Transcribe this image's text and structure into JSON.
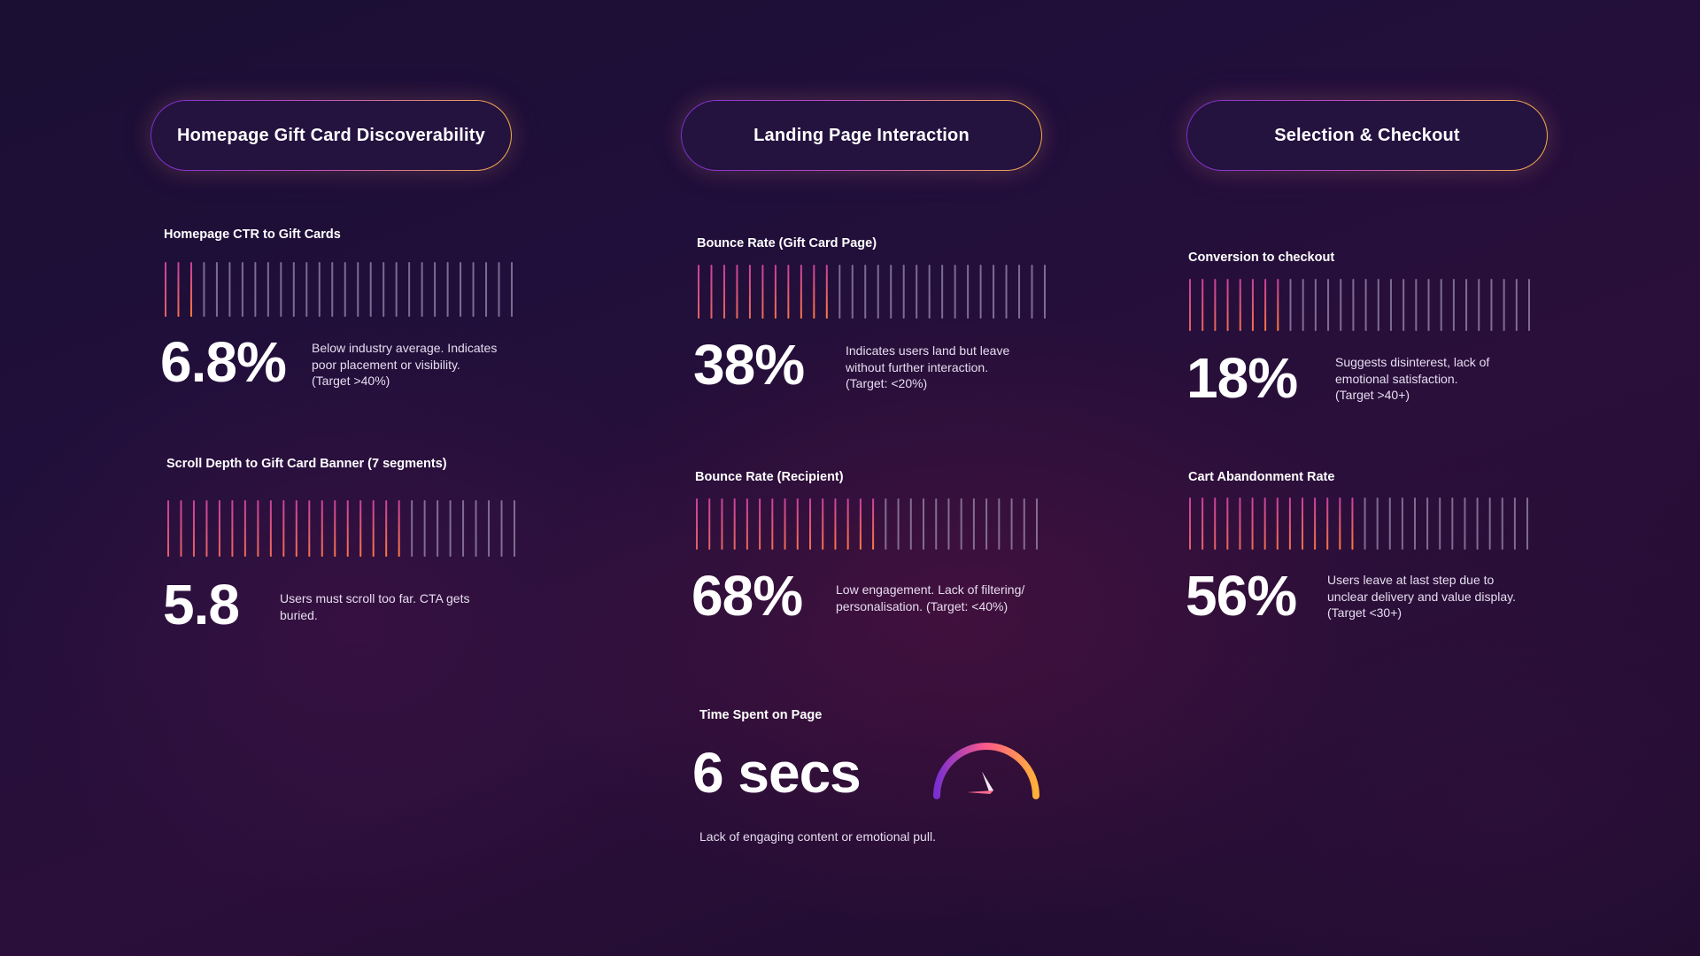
{
  "stages": [
    {
      "label": "Homepage Gift Card Discoverability"
    },
    {
      "label": "Landing Page Interaction"
    },
    {
      "label": "Selection & Checkout"
    }
  ],
  "metrics": {
    "homepage_ctr": {
      "title": "Homepage CTR to Gift Cards",
      "value": "6.8%",
      "desc": [
        "Below industry average. Indicates",
        "poor placement or visibility.",
        "(Target >40%)"
      ]
    },
    "scroll_depth": {
      "title": "Scroll Depth to Gift Card Banner (7 segments)",
      "value": "5.8",
      "desc": [
        "Users must scroll too far. CTA gets",
        "buried."
      ]
    },
    "bounce_gift": {
      "title": "Bounce Rate (Gift Card Page)",
      "value": "38%",
      "desc": [
        "Indicates users land but leave",
        "without further interaction.",
        "(Target: <20%)"
      ]
    },
    "bounce_recipient": {
      "title": "Bounce Rate (Recipient)",
      "value": "68%",
      "desc": [
        "Low engagement. Lack of filtering/",
        "personalisation. (Target: <40%)"
      ]
    },
    "time_on_page": {
      "title": "Time Spent on Page",
      "value": "6 secs",
      "desc": "Lack of engaging content or emotional pull."
    },
    "conversion": {
      "title": "Conversion to checkout",
      "value": "18%",
      "desc": [
        "Suggests disinterest, lack of",
        "emotional satisfaction.",
        "(Target >40+)"
      ]
    },
    "cart_abandon": {
      "title": "Cart Abandonment Rate",
      "value": "56%",
      "desc": [
        "Users leave at last step due to",
        "unclear delivery and value display.",
        "(Target <30+)"
      ]
    }
  },
  "chart_data": [
    {
      "type": "bar",
      "title": "Homepage CTR to Gift Cards",
      "total_segments": 28,
      "filled_segments": 3,
      "value": 6.8,
      "unit": "%"
    },
    {
      "type": "bar",
      "title": "Scroll Depth to Gift Card Banner (7 segments)",
      "total_segments": 28,
      "filled_segments": 19,
      "value": 5.8
    },
    {
      "type": "bar",
      "title": "Bounce Rate (Gift Card Page)",
      "total_segments": 28,
      "filled_segments": 11,
      "value": 38,
      "unit": "%"
    },
    {
      "type": "bar",
      "title": "Bounce Rate (Recipient)",
      "total_segments": 28,
      "filled_segments": 15,
      "value": 68,
      "unit": "%"
    },
    {
      "type": "bar",
      "title": "Conversion to checkout",
      "total_segments": 28,
      "filled_segments": 8,
      "value": 18,
      "unit": "%"
    },
    {
      "type": "bar",
      "title": "Cart Abandonment Rate",
      "total_segments": 28,
      "filled_segments": 14,
      "value": 56,
      "unit": "%"
    },
    {
      "type": "gauge",
      "title": "Time Spent on Page",
      "value": 6,
      "unit": "secs",
      "needle_fraction": 0.42
    }
  ],
  "colors": {
    "bar_fill_start": "#c8409e",
    "bar_fill_end": "#ff7a3c",
    "bar_empty": "#9c8cb0",
    "gauge_start": "#7a2fd0",
    "gauge_mid": "#ff5a8a",
    "gauge_end": "#ffb03a"
  }
}
